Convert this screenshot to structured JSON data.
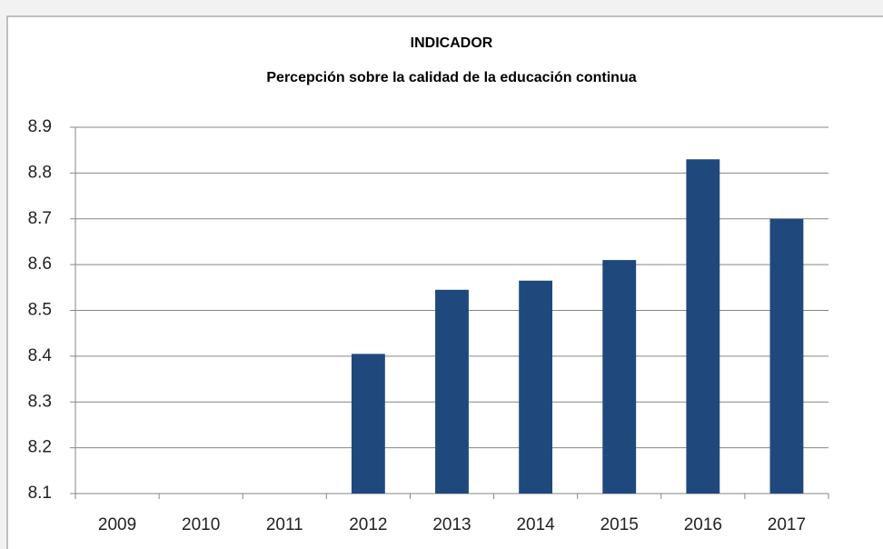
{
  "chart_data": {
    "type": "bar",
    "title": "INDICADOR",
    "subtitle": "Percepción sobre la calidad de la educación continua",
    "categories": [
      "2009",
      "2010",
      "2011",
      "2012",
      "2013",
      "2014",
      "2015",
      "2016",
      "2017"
    ],
    "values": [
      null,
      null,
      null,
      8.405,
      8.545,
      8.565,
      8.61,
      8.83,
      8.7
    ],
    "color": "#1f497d",
    "ylim": [
      8.1,
      8.9
    ],
    "yticks": [
      8.1,
      8.2,
      8.3,
      8.4,
      8.5,
      8.6,
      8.7,
      8.8,
      8.9
    ],
    "grid": true
  }
}
